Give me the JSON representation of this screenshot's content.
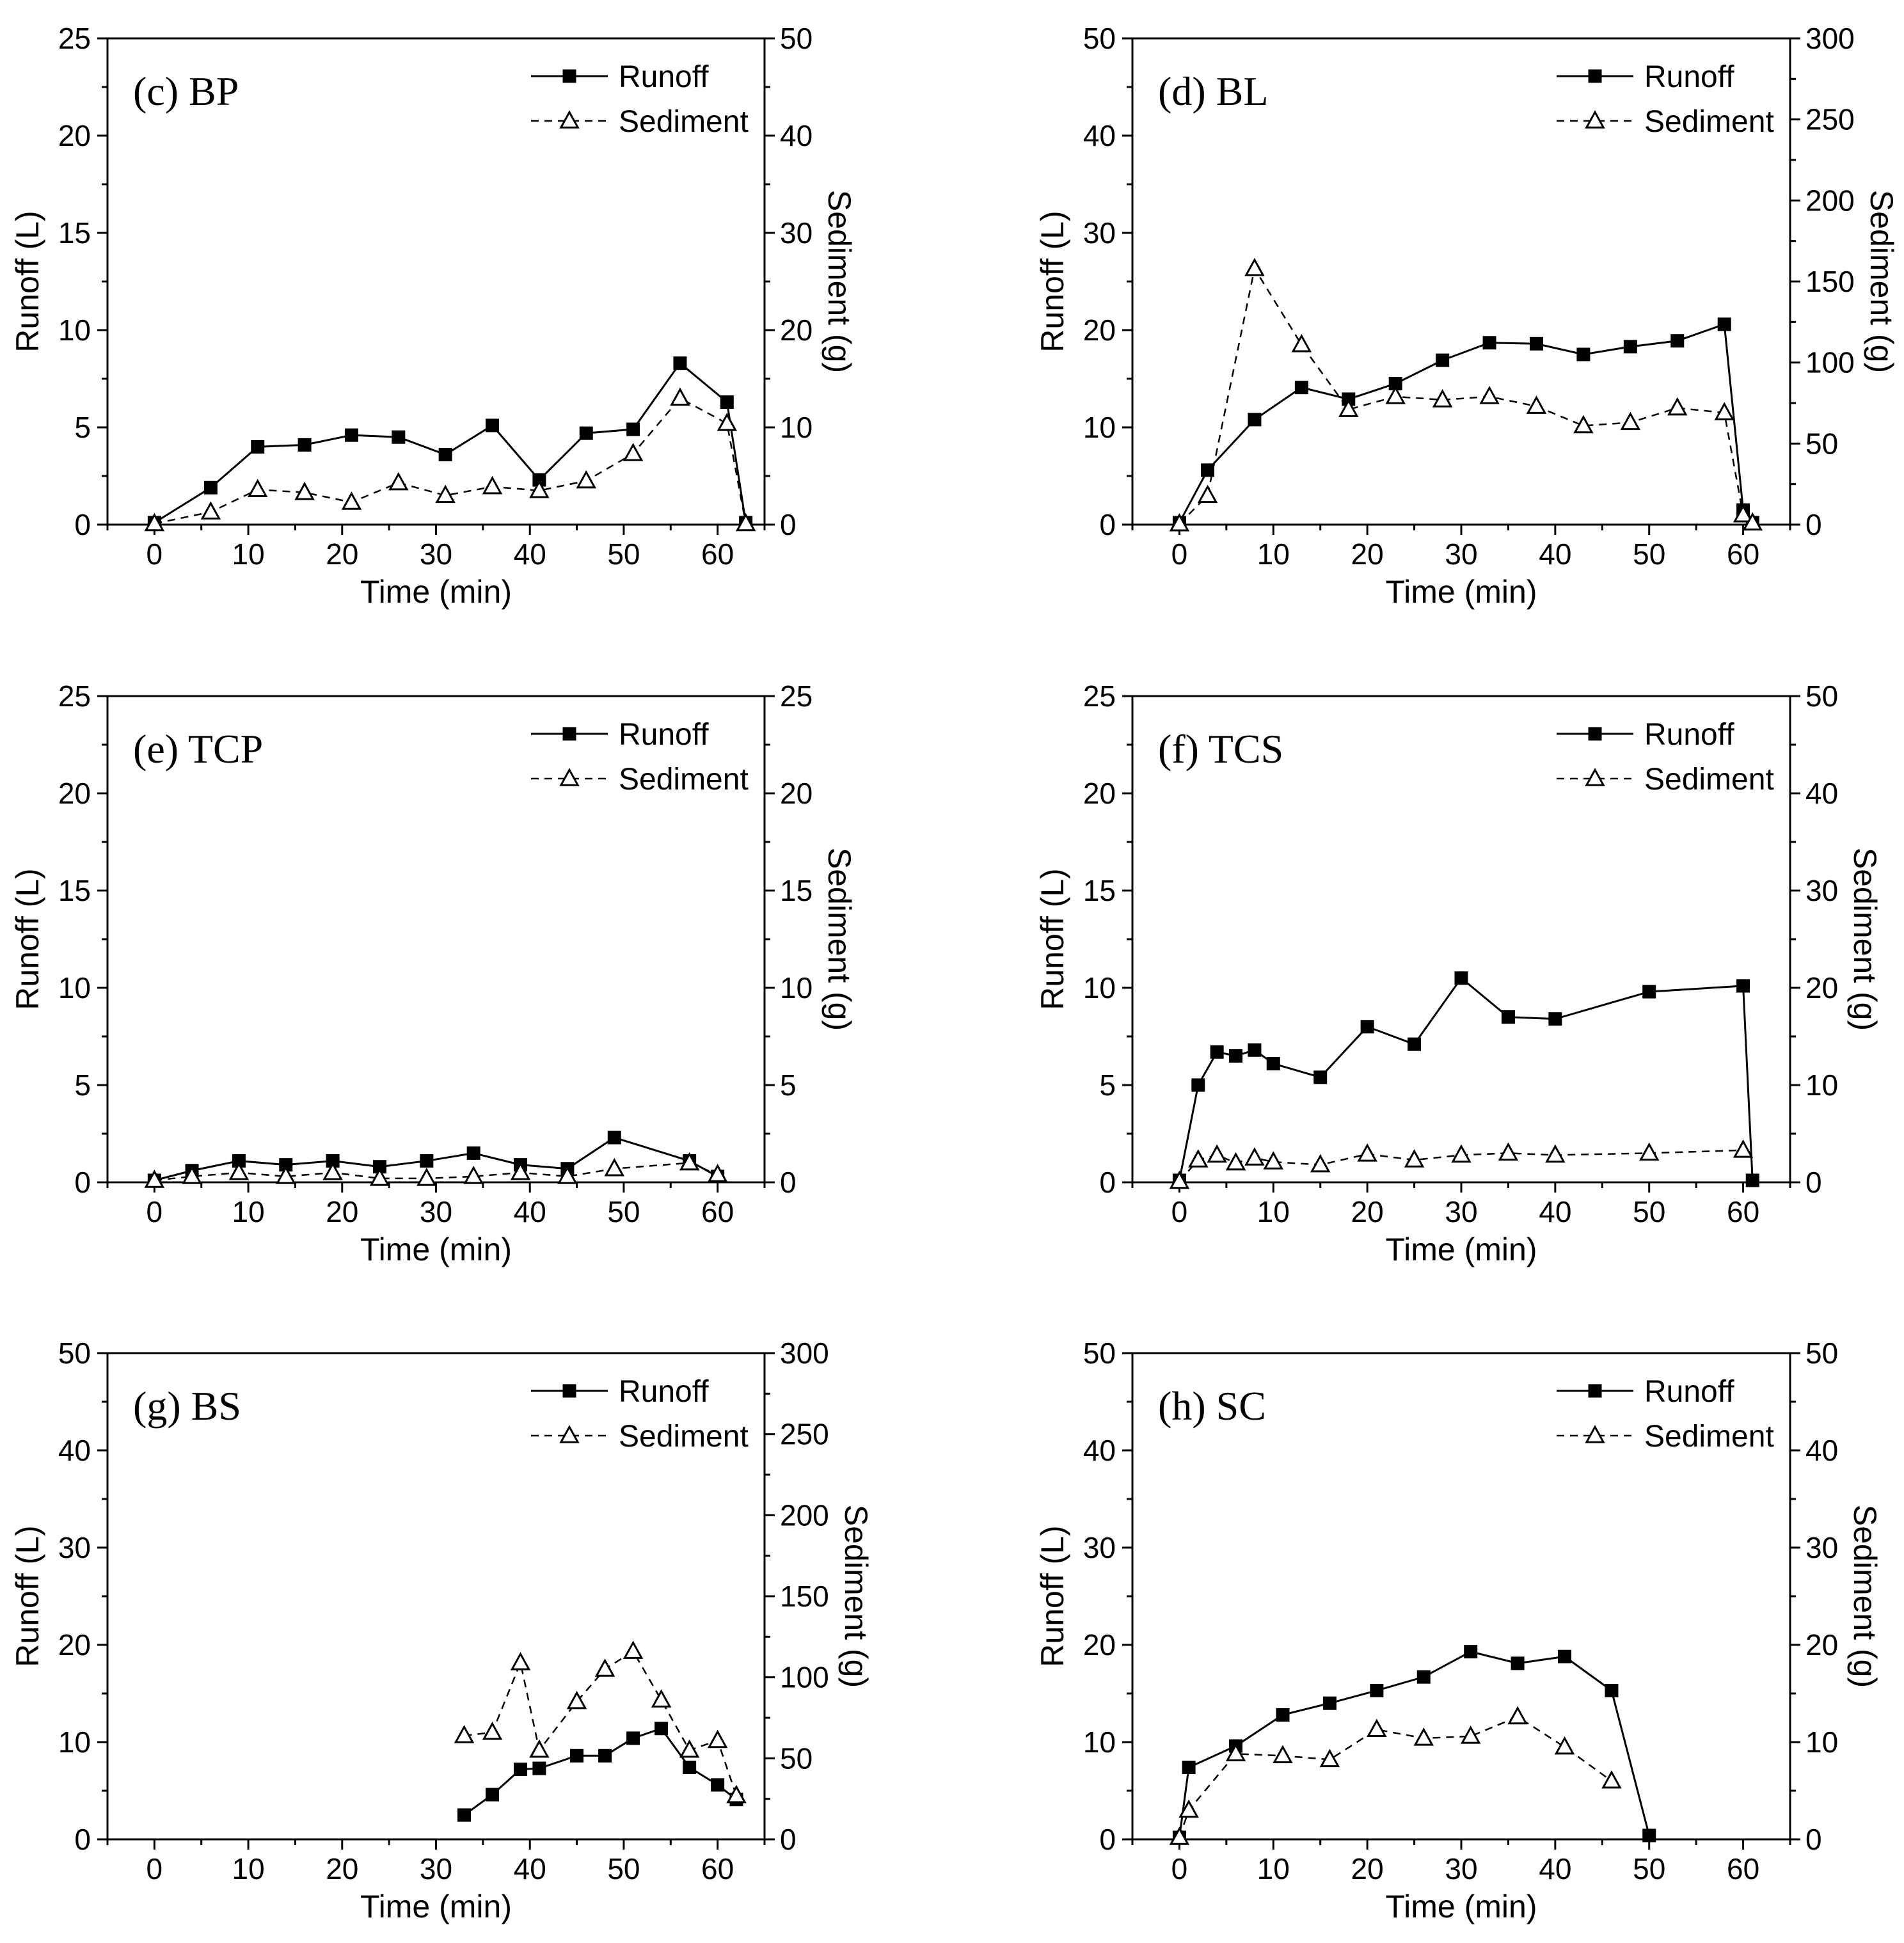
{
  "figure": {
    "background": "#ffffff",
    "color": "#000000"
  },
  "chart_data": [
    {
      "type": "line",
      "title": "(c) BP",
      "xlabel": "Time (min)",
      "ylabel": "Runoff (L)",
      "y2label": "Sediment (g)",
      "xlim": [
        -5,
        65
      ],
      "xticks": [
        0,
        10,
        20,
        30,
        40,
        50,
        60
      ],
      "ylim": [
        0,
        25
      ],
      "yticks": [
        0,
        5,
        10,
        15,
        20,
        25
      ],
      "y2lim": [
        0,
        50
      ],
      "y2ticks": [
        0,
        10,
        20,
        30,
        40,
        50
      ],
      "legend": [
        "Runoff",
        "Sediment"
      ],
      "legend_position": "top-right",
      "series": [
        {
          "name": "Runoff",
          "axis": "left",
          "marker": "filled-square",
          "line": "solid",
          "x": [
            0,
            6,
            11,
            16,
            21,
            26,
            31,
            36,
            41,
            46,
            51,
            56,
            61,
            63
          ],
          "y": [
            0.1,
            1.9,
            4.0,
            4.1,
            4.6,
            4.5,
            3.6,
            5.1,
            2.3,
            4.7,
            4.9,
            8.3,
            6.3,
            0.1
          ]
        },
        {
          "name": "Sediment",
          "axis": "right",
          "marker": "open-triangle",
          "line": "dashed",
          "x": [
            0,
            6,
            11,
            16,
            21,
            26,
            31,
            36,
            41,
            46,
            51,
            56,
            61,
            63
          ],
          "y": [
            0.1,
            1.3,
            3.6,
            3.3,
            2.3,
            4.3,
            3.0,
            3.9,
            3.5,
            4.5,
            7.3,
            13.0,
            10.4,
            0.1
          ]
        }
      ]
    },
    {
      "type": "line",
      "title": "(d) BL",
      "xlabel": "Time (min)",
      "ylabel": "Runoff (L)",
      "y2label": "Sediment (g)",
      "xlim": [
        -5,
        65
      ],
      "xticks": [
        0,
        10,
        20,
        30,
        40,
        50,
        60
      ],
      "ylim": [
        0,
        50
      ],
      "yticks": [
        0,
        10,
        20,
        30,
        40,
        50
      ],
      "y2lim": [
        0,
        300
      ],
      "y2ticks": [
        0,
        50,
        100,
        150,
        200,
        250,
        300
      ],
      "legend": [
        "Runoff",
        "Sediment"
      ],
      "legend_position": "top-right",
      "series": [
        {
          "name": "Runoff",
          "axis": "left",
          "marker": "filled-square",
          "line": "solid",
          "x": [
            0,
            3,
            8,
            13,
            18,
            23,
            28,
            33,
            38,
            43,
            48,
            53,
            58,
            60,
            61
          ],
          "y": [
            0.2,
            5.6,
            10.8,
            14.1,
            12.9,
            14.5,
            16.9,
            18.7,
            18.6,
            17.5,
            18.3,
            18.9,
            20.6,
            1.5,
            0.2
          ]
        },
        {
          "name": "Sediment",
          "axis": "right",
          "marker": "open-triangle",
          "line": "dashed",
          "x": [
            0,
            3,
            8,
            13,
            18,
            23,
            28,
            33,
            38,
            43,
            48,
            53,
            58,
            60,
            61
          ],
          "y": [
            0.5,
            18,
            158,
            111,
            71,
            79,
            77,
            79,
            73,
            61,
            63,
            72,
            69,
            6,
            1
          ]
        }
      ]
    },
    {
      "type": "line",
      "title": "(e) TCP",
      "xlabel": "Time (min)",
      "ylabel": "Runoff (L)",
      "y2label": "Sediment (g)",
      "xlim": [
        -5,
        65
      ],
      "xticks": [
        0,
        10,
        20,
        30,
        40,
        50,
        60
      ],
      "ylim": [
        0,
        25
      ],
      "yticks": [
        0,
        5,
        10,
        15,
        20,
        25
      ],
      "y2lim": [
        0,
        25
      ],
      "y2ticks": [
        0,
        5,
        10,
        15,
        20,
        25
      ],
      "legend": [
        "Runoff",
        "Sediment"
      ],
      "legend_position": "top-right",
      "series": [
        {
          "name": "Runoff",
          "axis": "left",
          "marker": "filled-square",
          "line": "solid",
          "x": [
            0,
            4,
            9,
            14,
            19,
            24,
            29,
            34,
            39,
            44,
            49,
            57,
            60
          ],
          "y": [
            0.1,
            0.6,
            1.1,
            0.9,
            1.1,
            0.8,
            1.1,
            1.5,
            0.9,
            0.7,
            2.3,
            1.1,
            0.3
          ]
        },
        {
          "name": "Sediment",
          "axis": "right",
          "marker": "open-triangle",
          "line": "dashed",
          "x": [
            0,
            4,
            9,
            14,
            19,
            24,
            29,
            34,
            39,
            44,
            49,
            57,
            60
          ],
          "y": [
            0.1,
            0.3,
            0.5,
            0.3,
            0.5,
            0.2,
            0.2,
            0.3,
            0.5,
            0.3,
            0.7,
            1.0,
            0.4
          ]
        }
      ]
    },
    {
      "type": "line",
      "title": "(f) TCS",
      "xlabel": "Time (min)",
      "ylabel": "Runoff (L)",
      "y2label": "Sediment (g)",
      "xlim": [
        -5,
        65
      ],
      "xticks": [
        0,
        10,
        20,
        30,
        40,
        50,
        60
      ],
      "ylim": [
        0,
        25
      ],
      "yticks": [
        0,
        5,
        10,
        15,
        20,
        25
      ],
      "y2lim": [
        0,
        50
      ],
      "y2ticks": [
        0,
        10,
        20,
        30,
        40,
        50
      ],
      "legend": [
        "Runoff",
        "Sediment"
      ],
      "legend_position": "top-right",
      "series": [
        {
          "name": "Runoff",
          "axis": "left",
          "marker": "filled-square",
          "line": "solid",
          "x": [
            0,
            2,
            4,
            6,
            8,
            10,
            15,
            20,
            25,
            30,
            35,
            40,
            50,
            60,
            61
          ],
          "y": [
            0.1,
            5.0,
            6.7,
            6.5,
            6.8,
            6.1,
            5.4,
            8.0,
            7.1,
            10.5,
            8.5,
            8.4,
            9.8,
            10.1,
            0.1
          ]
        },
        {
          "name": "Sediment",
          "axis": "right",
          "marker": "open-triangle",
          "line": "dashed",
          "x": [
            0,
            2,
            4,
            6,
            8,
            10,
            15,
            20,
            25,
            30,
            35,
            40,
            50,
            60
          ],
          "y": [
            0.1,
            2.3,
            2.8,
            2.0,
            2.5,
            2.1,
            1.8,
            2.9,
            2.3,
            2.8,
            3.0,
            2.8,
            3.0,
            3.3
          ]
        }
      ]
    },
    {
      "type": "line",
      "title": "(g) BS",
      "xlabel": "Time (min)",
      "ylabel": "Runoff (L)",
      "y2label": "Sediment (g)",
      "xlim": [
        -5,
        65
      ],
      "xticks": [
        0,
        10,
        20,
        30,
        40,
        50,
        60
      ],
      "ylim": [
        0,
        50
      ],
      "yticks": [
        0,
        10,
        20,
        30,
        40,
        50
      ],
      "y2lim": [
        0,
        300
      ],
      "y2ticks": [
        0,
        50,
        100,
        150,
        200,
        250,
        300
      ],
      "legend": [
        "Runoff",
        "Sediment"
      ],
      "legend_position": "top-right",
      "series": [
        {
          "name": "Runoff",
          "axis": "left",
          "marker": "filled-square",
          "line": "solid",
          "x": [
            33,
            36,
            39,
            41,
            45,
            48,
            51,
            54,
            57,
            60,
            62
          ],
          "y": [
            2.5,
            4.6,
            7.2,
            7.3,
            8.6,
            8.6,
            10.4,
            11.4,
            7.4,
            5.6,
            4.1
          ]
        },
        {
          "name": "Sediment",
          "axis": "right",
          "marker": "open-triangle",
          "line": "dashed",
          "x": [
            33,
            36,
            39,
            41,
            45,
            48,
            51,
            54,
            57,
            60,
            62
          ],
          "y": [
            64,
            66,
            109,
            55,
            85,
            105,
            116,
            86,
            55,
            61,
            27
          ]
        }
      ]
    },
    {
      "type": "line",
      "title": "(h) SC",
      "xlabel": "Time (min)",
      "ylabel": "Runoff (L)",
      "y2label": "Sediment (g)",
      "xlim": [
        -5,
        65
      ],
      "xticks": [
        0,
        10,
        20,
        30,
        40,
        50,
        60
      ],
      "ylim": [
        0,
        50
      ],
      "yticks": [
        0,
        10,
        20,
        30,
        40,
        50
      ],
      "y2lim": [
        0,
        50
      ],
      "y2ticks": [
        0,
        10,
        20,
        30,
        40,
        50
      ],
      "legend": [
        "Runoff",
        "Sediment"
      ],
      "legend_position": "top-right",
      "series": [
        {
          "name": "Runoff",
          "axis": "left",
          "marker": "filled-square",
          "line": "solid",
          "x": [
            0,
            1,
            6,
            11,
            16,
            21,
            26,
            31,
            36,
            41,
            46,
            50
          ],
          "y": [
            0.2,
            7.4,
            9.6,
            12.8,
            14.0,
            15.3,
            16.7,
            19.3,
            18.1,
            18.8,
            15.3,
            0.4
          ]
        },
        {
          "name": "Sediment",
          "axis": "right",
          "marker": "open-triangle",
          "line": "dashed",
          "x": [
            0,
            1,
            6,
            11,
            16,
            21,
            26,
            31,
            36,
            41,
            46
          ],
          "y": [
            0.2,
            3.0,
            8.8,
            8.6,
            8.2,
            11.3,
            10.4,
            10.6,
            12.6,
            9.5,
            6.0
          ]
        }
      ]
    }
  ]
}
